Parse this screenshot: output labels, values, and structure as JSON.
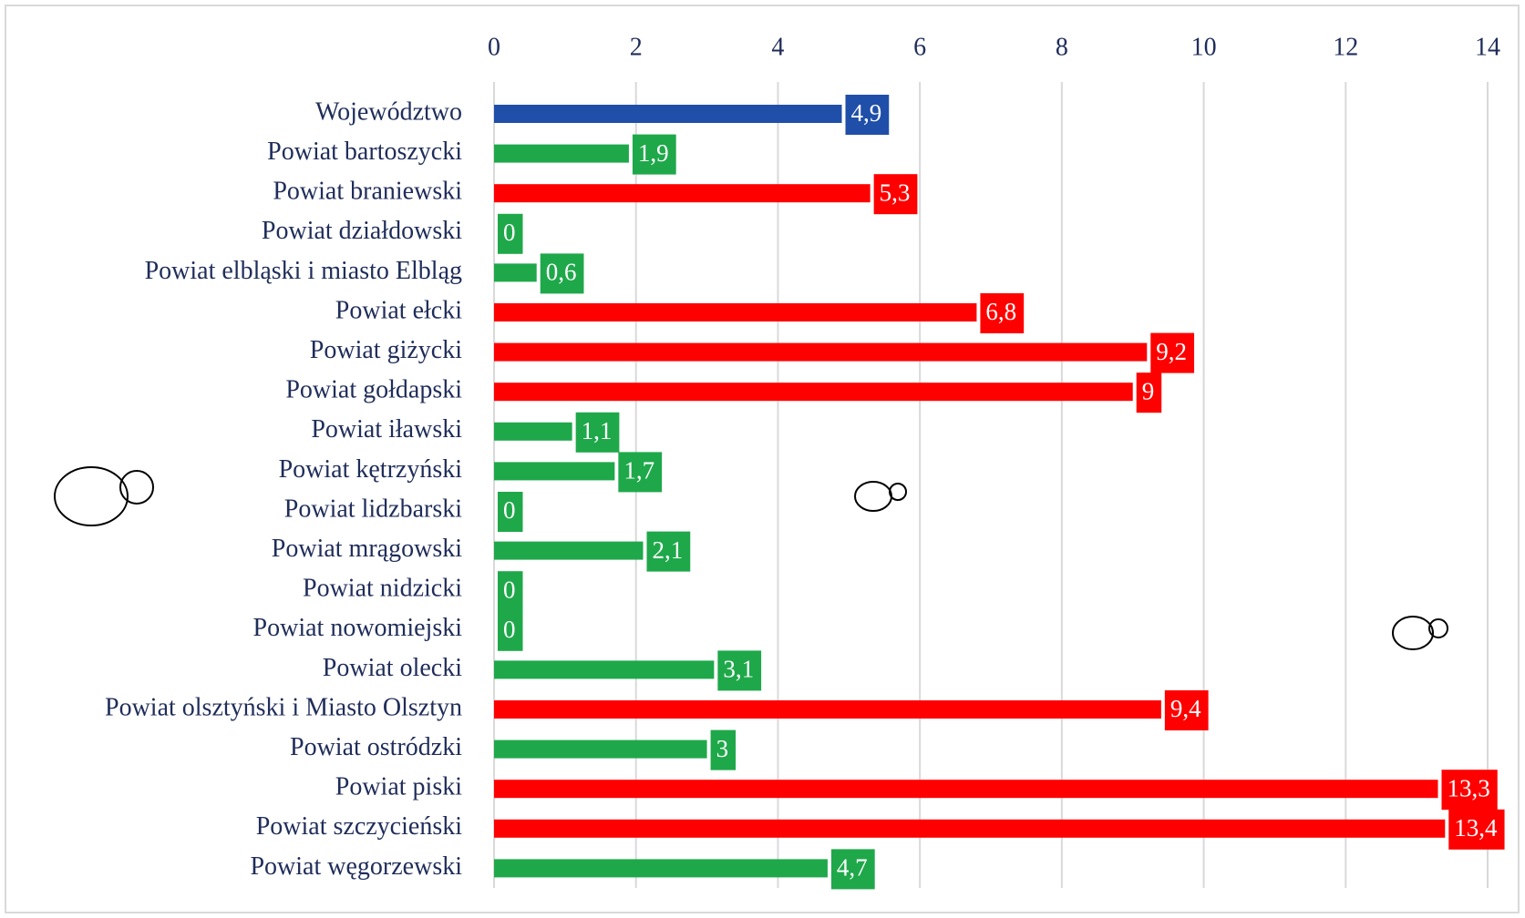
{
  "chart_data": {
    "type": "bar",
    "orientation": "horizontal",
    "categories": [
      "Województwo",
      "Powiat bartoszycki",
      "Powiat braniewski",
      "Powiat działdowski",
      "Powiat elbląski i miasto Elbląg",
      "Powiat ełcki",
      "Powiat giżycki",
      "Powiat gołdapski",
      "Powiat iławski",
      "Powiat kętrzyński",
      "Powiat lidzbarski",
      "Powiat mrągowski",
      "Powiat nidzicki",
      "Powiat nowomiejski",
      "Powiat olecki",
      "Powiat olsztyński i Miasto Olsztyn",
      "Powiat ostródzki",
      "Powiat piski",
      "Powiat szczycieński",
      "Powiat węgorzewski"
    ],
    "values": [
      4.9,
      1.9,
      5.3,
      0,
      0.6,
      6.8,
      9.2,
      9,
      1.1,
      1.7,
      0,
      2.1,
      0,
      0,
      3.1,
      9.4,
      3,
      13.3,
      13.4,
      4.7
    ],
    "value_labels": [
      "4,9",
      "1,9",
      "5,3",
      "0",
      "0,6",
      "6,8",
      "9,2",
      "9",
      "1,1",
      "1,7",
      "0",
      "2,1",
      "0",
      "0",
      "3,1",
      "9,4",
      "3",
      "13,3",
      "13,4",
      "4,7"
    ],
    "colors": [
      "#1f4fa8",
      "#1fa84a",
      "#ff0000",
      "#1fa84a",
      "#1fa84a",
      "#ff0000",
      "#ff0000",
      "#ff0000",
      "#1fa84a",
      "#1fa84a",
      "#1fa84a",
      "#1fa84a",
      "#1fa84a",
      "#1fa84a",
      "#1fa84a",
      "#ff0000",
      "#1fa84a",
      "#ff0000",
      "#ff0000",
      "#1fa84a"
    ],
    "xlim": [
      0,
      14
    ],
    "xticks": [
      0,
      2,
      4,
      6,
      8,
      10,
      12,
      14
    ],
    "grid": true
  }
}
